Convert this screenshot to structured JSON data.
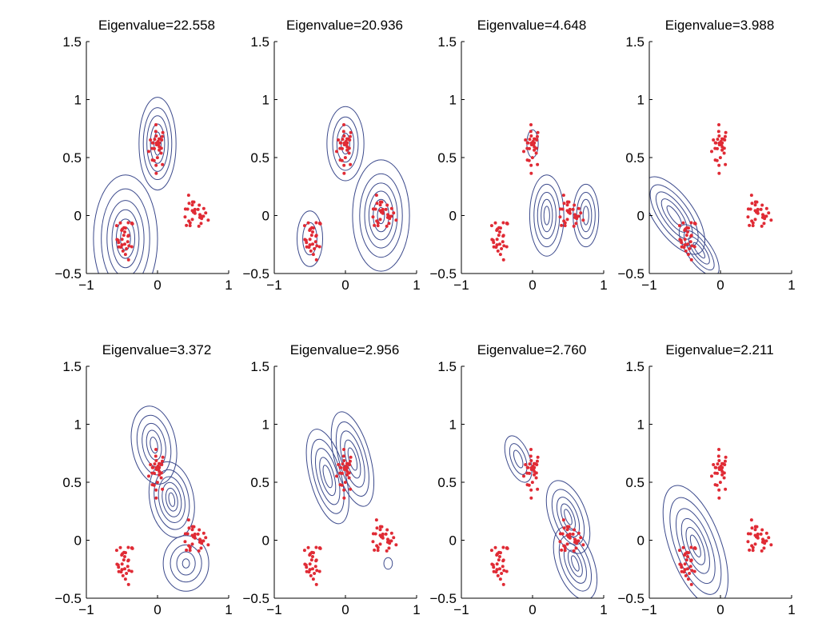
{
  "chart_data": {
    "type": "scatter",
    "layout": "2x4 grid of contour plots with point clouds",
    "colors": {
      "contour": "#3c4a8c",
      "points": "#e02b35",
      "axes": "#000000",
      "background": "#ffffff"
    },
    "xlim": [
      -1,
      1
    ],
    "ylim": [
      -0.5,
      1.5
    ],
    "xticks": [
      -1,
      0,
      1
    ],
    "yticks": [
      -0.5,
      0,
      0.5,
      1,
      1.5
    ],
    "xtick_labels": [
      "−1",
      "0",
      "1"
    ],
    "ytick_labels": [
      "−0.5",
      "0",
      "0.5",
      "1",
      "1.5"
    ],
    "grid": false,
    "clusters": [
      {
        "center": [
          0.0,
          0.6
        ],
        "spread": [
          0.06,
          0.09
        ],
        "n": 30
      },
      {
        "center": [
          -0.45,
          -0.2
        ],
        "spread": [
          0.06,
          0.09
        ],
        "n": 30
      },
      {
        "center": [
          0.5,
          0.0
        ],
        "spread": [
          0.1,
          0.07
        ],
        "n": 30
      }
    ],
    "panels": [
      {
        "title": "Eigenvalue=22.558",
        "contours": [
          {
            "cx": 0.0,
            "cy": 0.62,
            "rx": [
              0.05,
              0.1,
              0.15,
              0.2,
              0.26
            ],
            "ry": [
              0.1,
              0.17,
              0.24,
              0.31,
              0.4
            ],
            "rot": 0
          },
          {
            "cx": -0.45,
            "cy": -0.2,
            "rx": [
              0.07,
              0.13,
              0.19,
              0.26,
              0.34,
              0.45
            ],
            "ry": [
              0.1,
              0.17,
              0.25,
              0.33,
              0.43,
              0.55
            ],
            "rot": 0
          }
        ]
      },
      {
        "title": "Eigenvalue=20.936",
        "contours": [
          {
            "cx": 0.5,
            "cy": 0.0,
            "rx": [
              0.05,
              0.11,
              0.17,
              0.23,
              0.3,
              0.4
            ],
            "ry": [
              0.07,
              0.14,
              0.21,
              0.28,
              0.36,
              0.48
            ],
            "rot": 0
          },
          {
            "cx": 0.0,
            "cy": 0.62,
            "rx": [
              0.06,
              0.12,
              0.18,
              0.26
            ],
            "ry": [
              0.09,
              0.16,
              0.23,
              0.32
            ],
            "rot": 0
          },
          {
            "cx": -0.5,
            "cy": -0.2,
            "rx": [
              0.1,
              0.18
            ],
            "ry": [
              0.14,
              0.24
            ],
            "rot": 0
          }
        ]
      },
      {
        "title": "Eigenvalue=4.648",
        "contours": [
          {
            "cx": 0.2,
            "cy": 0.0,
            "rx": [
              0.04,
              0.08,
              0.13,
              0.18,
              0.24
            ],
            "ry": [
              0.08,
              0.14,
              0.2,
              0.27,
              0.35
            ],
            "rot": 0
          },
          {
            "cx": 0.75,
            "cy": 0.0,
            "rx": [
              0.04,
              0.08,
              0.13,
              0.18
            ],
            "ry": [
              0.08,
              0.14,
              0.2,
              0.27
            ],
            "rot": 0
          },
          {
            "cx": 0.0,
            "cy": 0.62,
            "rx": [
              0.08
            ],
            "ry": [
              0.12
            ],
            "rot": 0
          }
        ]
      },
      {
        "title": "Eigenvalue=3.988",
        "contours": [
          {
            "cx": -0.65,
            "cy": 0.0,
            "rx": [
              0.05,
              0.1,
              0.15,
              0.21,
              0.28
            ],
            "ry": [
              0.1,
              0.17,
              0.24,
              0.31,
              0.39
            ],
            "rot": -35
          },
          {
            "cx": -0.3,
            "cy": -0.3,
            "rx": [
              0.04,
              0.08,
              0.12,
              0.17
            ],
            "ry": [
              0.08,
              0.14,
              0.2,
              0.26
            ],
            "rot": -35
          }
        ]
      },
      {
        "title": "Eigenvalue=3.372",
        "contours": [
          {
            "cx": -0.05,
            "cy": 0.82,
            "rx": [
              0.05,
              0.1,
              0.16,
              0.23,
              0.31
            ],
            "ry": [
              0.07,
              0.13,
              0.19,
              0.26,
              0.34
            ],
            "rot": -10
          },
          {
            "cx": 0.2,
            "cy": 0.35,
            "rx": [
              0.04,
              0.08,
              0.13,
              0.18,
              0.24,
              0.31
            ],
            "ry": [
              0.06,
              0.1,
              0.15,
              0.2,
              0.26,
              0.33
            ],
            "rot": -10
          },
          {
            "cx": 0.4,
            "cy": -0.2,
            "rx": [
              0.05,
              0.13,
              0.22,
              0.32
            ],
            "ry": [
              0.04,
              0.1,
              0.16,
              0.24
            ],
            "rot": 0
          }
        ]
      },
      {
        "title": "Eigenvalue=2.956",
        "contours": [
          {
            "cx": -0.25,
            "cy": 0.55,
            "rx": [
              0.05,
              0.09,
              0.14,
              0.19,
              0.25
            ],
            "ry": [
              0.1,
              0.17,
              0.25,
              0.33,
              0.42
            ],
            "rot": -15
          },
          {
            "cx": 0.1,
            "cy": 0.7,
            "rx": [
              0.05,
              0.09,
              0.14,
              0.19,
              0.25
            ],
            "ry": [
              0.1,
              0.17,
              0.25,
              0.33,
              0.42
            ],
            "rot": -15
          },
          {
            "cx": 0.6,
            "cy": -0.2,
            "rx": [
              0.06
            ],
            "ry": [
              0.05
            ],
            "rot": 0
          }
        ]
      },
      {
        "title": "Eigenvalue=2.760",
        "contours": [
          {
            "cx": -0.2,
            "cy": 0.7,
            "rx": [
              0.05,
              0.1,
              0.16
            ],
            "ry": [
              0.08,
              0.14,
              0.21
            ],
            "rot": -20
          },
          {
            "cx": 0.5,
            "cy": 0.2,
            "rx": [
              0.04,
              0.08,
              0.13,
              0.19,
              0.26
            ],
            "ry": [
              0.07,
              0.12,
              0.18,
              0.25,
              0.33
            ],
            "rot": -20
          },
          {
            "cx": 0.6,
            "cy": -0.2,
            "rx": [
              0.04,
              0.08,
              0.13,
              0.19,
              0.26
            ],
            "ry": [
              0.07,
              0.12,
              0.18,
              0.25,
              0.33
            ],
            "rot": -20
          }
        ]
      },
      {
        "title": "Eigenvalue=2.211",
        "contours": [
          {
            "cx": -0.35,
            "cy": -0.05,
            "rx": [
              0.05,
              0.1,
              0.15,
              0.21,
              0.28,
              0.36
            ],
            "ry": [
              0.1,
              0.17,
              0.25,
              0.34,
              0.44,
              0.55
            ],
            "rot": -20
          }
        ]
      }
    ]
  }
}
